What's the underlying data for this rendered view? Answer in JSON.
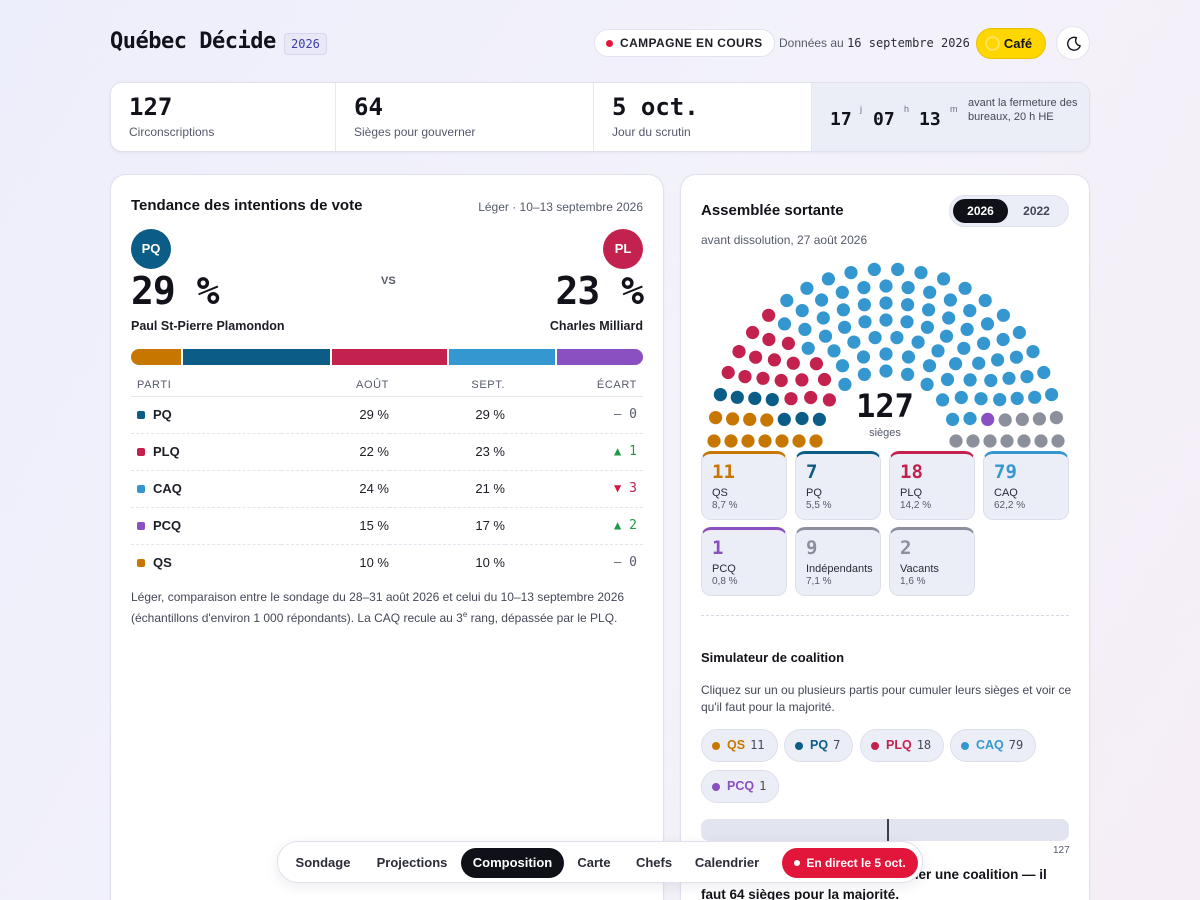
{
  "header": {
    "brand": "Québec Décide",
    "year": "2026",
    "campaign_label": "CAMPAGNE EN COURS",
    "data_prefix": "Données au",
    "data_date": "16 septembre 2026",
    "cafe_label": "Café",
    "theme_icon": "moon-icon"
  },
  "stats": [
    {
      "value": "127",
      "label": "Circonscriptions"
    },
    {
      "value": "64",
      "label": "Sièges pour gouverner"
    },
    {
      "value": "5 oct.",
      "label": "Jour du scrutin"
    }
  ],
  "countdown": {
    "days": "17",
    "days_unit": "j",
    "hours": "07",
    "hours_unit": "h",
    "minutes": "13",
    "minutes_unit": "m",
    "text": "avant la fermeture des bureaux, 20 h HE"
  },
  "trend": {
    "title": "Tendance des intentions de vote",
    "source": "Léger · 10–13 septembre 2026",
    "vs": "VS",
    "leader_left": {
      "badge": "PQ",
      "pct": "29 %",
      "name": "Paul St-Pierre Plamondon",
      "color": "#0b5d87"
    },
    "leader_right": {
      "badge": "PL",
      "pct": "23 %",
      "name": "Charles Milliard",
      "color": "#c4224e"
    },
    "headers": {
      "party": "PARTI",
      "aug": "AOÛT",
      "sep": "SEPT.",
      "delta": "ÉCART"
    },
    "rows": [
      {
        "party": "PQ",
        "color": "#0b5d87",
        "aug": "29 %",
        "sep": "29 %",
        "arrow": "—",
        "delta": "0",
        "trend": "flat"
      },
      {
        "party": "PLQ",
        "color": "#c4224e",
        "aug": "22 %",
        "sep": "23 %",
        "arrow": "▲",
        "delta": "1",
        "trend": "up"
      },
      {
        "party": "CAQ",
        "color": "#3597cf",
        "aug": "24 %",
        "sep": "21 %",
        "arrow": "▼",
        "delta": "3",
        "trend": "down"
      },
      {
        "party": "PCQ",
        "color": "#8a4fc0",
        "aug": "15 %",
        "sep": "17 %",
        "arrow": "▲",
        "delta": "2",
        "trend": "up"
      },
      {
        "party": "QS",
        "color": "#c77600",
        "aug": "10 %",
        "sep": "10 %",
        "arrow": "—",
        "delta": "0",
        "trend": "flat"
      }
    ],
    "note_1": "Léger, comparaison entre le sondage du 28–31 août 2026 et celui du 10–13 septembre 2026 (échantillons d'environ 1 000 répondants). La CAQ recule au 3",
    "note_sup": "e",
    "note_2": " rang, dépassée par le PLQ."
  },
  "assembly": {
    "title": "Assemblée sortante",
    "subtitle": "avant dissolution, 27 août 2026",
    "years": [
      "2026",
      "2022"
    ],
    "active_year": "2026",
    "total": "127",
    "total_label": "sièges",
    "parties": [
      {
        "abbr": "QS",
        "seats": "11",
        "pct": "8,7 %",
        "color": "#c77600",
        "count": 11
      },
      {
        "abbr": "PQ",
        "seats": "7",
        "pct": "5,5 %",
        "color": "#0b5d87",
        "count": 7
      },
      {
        "abbr": "PLQ",
        "seats": "18",
        "pct": "14,2 %",
        "color": "#c4224e",
        "count": 18
      },
      {
        "abbr": "CAQ",
        "seats": "79",
        "pct": "62,2 %",
        "color": "#3597cf",
        "count": 79
      },
      {
        "abbr": "PCQ",
        "seats": "1",
        "pct": "0,8 %",
        "color": "#8a4fc0",
        "count": 1
      },
      {
        "abbr": "Indépendants",
        "seats": "9",
        "pct": "7,1 %",
        "color": "#8c8f9c",
        "count": 9
      },
      {
        "abbr": "Vacants",
        "seats": "2",
        "pct": "1,6 %",
        "color": "#8c8f9c",
        "count": 2
      }
    ]
  },
  "simulator": {
    "title": "Simulateur de coalition",
    "text": "Cliquez sur un ou plusieurs partis pour cumuler leurs sièges et voir ce qu'il faut pour la majorité.",
    "chips": [
      {
        "abbr": "QS",
        "seats": "11",
        "color": "#c77600"
      },
      {
        "abbr": "PQ",
        "seats": "7",
        "color": "#0b5d87"
      },
      {
        "abbr": "PLQ",
        "seats": "18",
        "color": "#c4224e"
      },
      {
        "abbr": "CAQ",
        "seats": "79",
        "color": "#3597cf"
      },
      {
        "abbr": "PCQ",
        "seats": "1",
        "color": "#8a4fc0"
      }
    ],
    "selected_seats": 0,
    "max_label": "127",
    "result": "Sélectionnez des partis pour former une coalition — il faut 64 sièges pour la majorité."
  },
  "nav": {
    "items": [
      "Sondage",
      "Projections",
      "Composition",
      "Carte",
      "Chefs",
      "Calendrier"
    ],
    "active": "Composition",
    "live_label": "En direct le 5 oct."
  }
}
